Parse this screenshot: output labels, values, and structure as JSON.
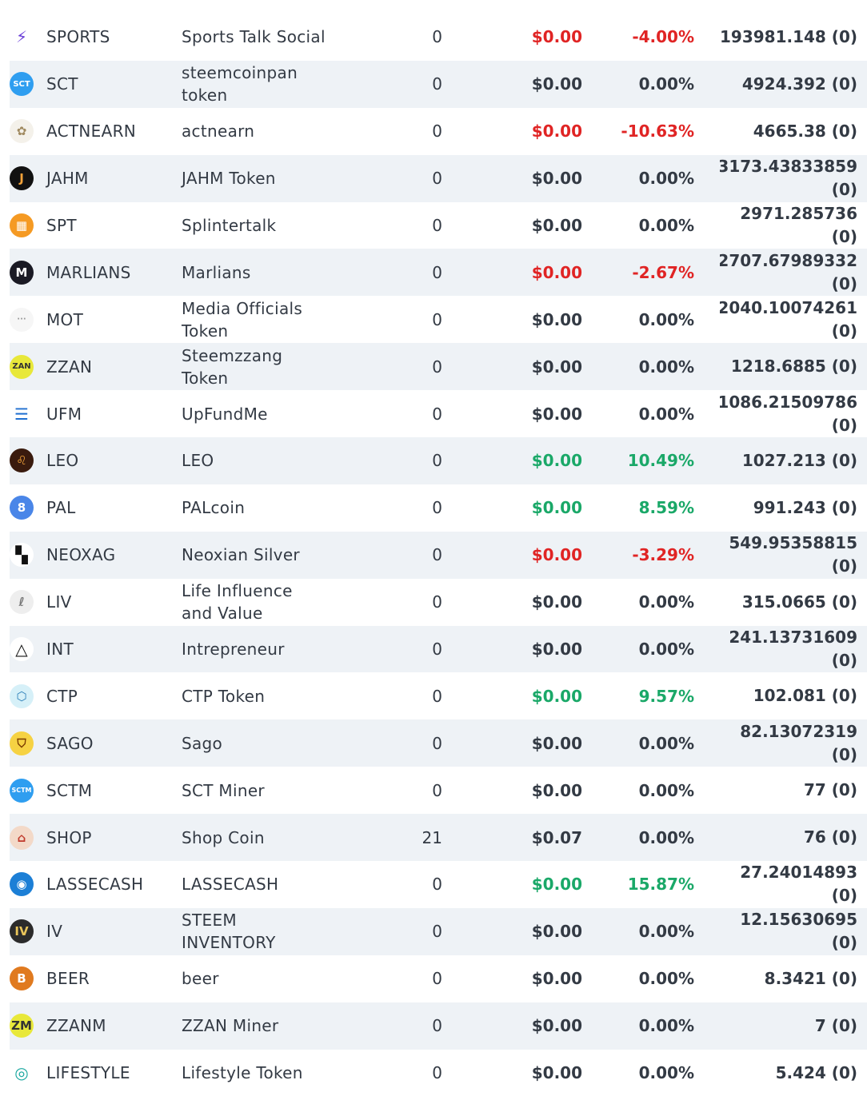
{
  "tokens": [
    {
      "icon": "sports-icon",
      "bg": "#ffffff",
      "fg": "#6a3fd8",
      "glyph": "⚡",
      "symbol": "SPORTS",
      "name": "Sports Talk Social",
      "balance": "0",
      "price": "$0.00",
      "change": "-4.00%",
      "trend": "neg",
      "supply": "193981.148 (0)"
    },
    {
      "icon": "sct-icon",
      "bg": "#2f9ef0",
      "fg": "#ffffff",
      "glyph": "SCT",
      "symbol": "SCT",
      "name": "steemcoinpan token",
      "balance": "0",
      "price": "$0.00",
      "change": "0.00%",
      "trend": "neu",
      "supply": "4924.392 (0)"
    },
    {
      "icon": "actnearn-icon",
      "bg": "#f4f1ea",
      "fg": "#a08a60",
      "glyph": "✿",
      "symbol": "ACTNEARN",
      "name": "actnearn",
      "balance": "0",
      "price": "$0.00",
      "change": "-10.63%",
      "trend": "neg",
      "supply": "4665.38 (0)"
    },
    {
      "icon": "jahm-icon",
      "bg": "#111111",
      "fg": "#f2a23a",
      "glyph": "J",
      "symbol": "JAHM",
      "name": "JAHM Token",
      "balance": "0",
      "price": "$0.00",
      "change": "0.00%",
      "trend": "neu",
      "supply": "3173.43833859\n(0)"
    },
    {
      "icon": "spt-icon",
      "bg": "#f59a23",
      "fg": "#ffffff",
      "glyph": "▦",
      "symbol": "SPT",
      "name": "Splintertalk",
      "balance": "0",
      "price": "$0.00",
      "change": "0.00%",
      "trend": "neu",
      "supply": "2971.285736\n(0)"
    },
    {
      "icon": "marlians-icon",
      "bg": "#1a1a24",
      "fg": "#ffffff",
      "glyph": "M",
      "symbol": "MARLIANS",
      "name": "Marlians",
      "balance": "0",
      "price": "$0.00",
      "change": "-2.67%",
      "trend": "neg",
      "supply": "2707.67989332\n(0)"
    },
    {
      "icon": "mot-icon",
      "bg": "#f6f6f6",
      "fg": "#999999",
      "glyph": "···",
      "symbol": "MOT",
      "name": "Media Officials Token",
      "balance": "0",
      "price": "$0.00",
      "change": "0.00%",
      "trend": "neu",
      "supply": "2040.10074261\n(0)"
    },
    {
      "icon": "zzan-icon",
      "bg": "#e8e83a",
      "fg": "#333333",
      "glyph": "ZAN",
      "symbol": "ZZAN",
      "name": "Steemzzang Token",
      "balance": "0",
      "price": "$0.00",
      "change": "0.00%",
      "trend": "neu",
      "supply": "1218.6885 (0)"
    },
    {
      "icon": "ufm-icon",
      "bg": "#ffffff",
      "fg": "#1f6fd0",
      "glyph": "☰",
      "symbol": "UFM",
      "name": "UpFundMe",
      "balance": "0",
      "price": "$0.00",
      "change": "0.00%",
      "trend": "neu",
      "supply": "1086.21509786\n(0)"
    },
    {
      "icon": "leo-icon",
      "bg": "#3a1b0e",
      "fg": "#f2a23a",
      "glyph": "♌",
      "symbol": "LEO",
      "name": "LEO",
      "balance": "0",
      "price": "$0.00",
      "change": "10.49%",
      "trend": "pos",
      "supply": "1027.213 (0)"
    },
    {
      "icon": "pal-icon",
      "bg": "#4a86e8",
      "fg": "#ffffff",
      "glyph": "8",
      "symbol": "PAL",
      "name": "PALcoin",
      "balance": "0",
      "price": "$0.00",
      "change": "8.59%",
      "trend": "pos",
      "supply": "991.243 (0)"
    },
    {
      "icon": "neoxag-icon",
      "bg": "#ffffff",
      "fg": "#111111",
      "glyph": "▚",
      "symbol": "NEOXAG",
      "name": "Neoxian Silver",
      "balance": "0",
      "price": "$0.00",
      "change": "-3.29%",
      "trend": "neg",
      "supply": "549.95358815\n(0)"
    },
    {
      "icon": "liv-icon",
      "bg": "#eeeeee",
      "fg": "#777777",
      "glyph": "ℓ",
      "symbol": "LIV",
      "name": "Life Influence and Value",
      "balance": "0",
      "price": "$0.00",
      "change": "0.00%",
      "trend": "neu",
      "supply": "315.0665 (0)"
    },
    {
      "icon": "int-icon",
      "bg": "#ffffff",
      "fg": "#111111",
      "glyph": "△",
      "symbol": "INT",
      "name": "Intrepreneur",
      "balance": "0",
      "price": "$0.00",
      "change": "0.00%",
      "trend": "neu",
      "supply": "241.13731609\n(0)"
    },
    {
      "icon": "ctp-icon",
      "bg": "#d6f0f8",
      "fg": "#2c7fb8",
      "glyph": "⬡",
      "symbol": "CTP",
      "name": "CTP Token",
      "balance": "0",
      "price": "$0.00",
      "change": "9.57%",
      "trend": "pos",
      "supply": "102.081 (0)"
    },
    {
      "icon": "sago-icon",
      "bg": "#f6d243",
      "fg": "#7a3b00",
      "glyph": "⛉",
      "symbol": "SAGO",
      "name": "Sago",
      "balance": "0",
      "price": "$0.00",
      "change": "0.00%",
      "trend": "neu",
      "supply": "82.13072319\n(0)"
    },
    {
      "icon": "sctm-icon",
      "bg": "#2f9ef0",
      "fg": "#ffffff",
      "glyph": "SCTM",
      "symbol": "SCTM",
      "name": "SCT Miner",
      "balance": "0",
      "price": "$0.00",
      "change": "0.00%",
      "trend": "neu",
      "supply": "77 (0)"
    },
    {
      "icon": "shop-icon",
      "bg": "#f3d9c8",
      "fg": "#c0392b",
      "glyph": "⌂",
      "symbol": "SHOP",
      "name": "Shop Coin",
      "balance": "21",
      "price": "$0.07",
      "change": "0.00%",
      "trend": "neu",
      "supply": "76 (0)"
    },
    {
      "icon": "lassecash-icon",
      "bg": "#1c7fd6",
      "fg": "#ffffff",
      "glyph": "◉",
      "symbol": "LASSECASH",
      "name": "LASSECASH",
      "balance": "0",
      "price": "$0.00",
      "change": "15.87%",
      "trend": "pos",
      "supply": "27.24014893\n(0)"
    },
    {
      "icon": "iv-icon",
      "bg": "#2b2b2b",
      "fg": "#e8c45a",
      "glyph": "IV",
      "symbol": "IV",
      "name": "STEEM INVENTORY",
      "balance": "0",
      "price": "$0.00",
      "change": "0.00%",
      "trend": "neu",
      "supply": "12.15630695\n(0)"
    },
    {
      "icon": "beer-icon",
      "bg": "#e07a1f",
      "fg": "#ffffff",
      "glyph": "B",
      "symbol": "BEER",
      "name": "beer",
      "balance": "0",
      "price": "$0.00",
      "change": "0.00%",
      "trend": "neu",
      "supply": "8.3421 (0)"
    },
    {
      "icon": "zzanm-icon",
      "bg": "#e8e83a",
      "fg": "#333333",
      "glyph": "ZM",
      "symbol": "ZZANM",
      "name": "ZZAN Miner",
      "balance": "0",
      "price": "$0.00",
      "change": "0.00%",
      "trend": "neu",
      "supply": "7 (0)"
    },
    {
      "icon": "lifestyle-icon",
      "bg": "#ffffff",
      "fg": "#1aa8a0",
      "glyph": "◎",
      "symbol": "LIFESTYLE",
      "name": "Lifestyle Token",
      "balance": "0",
      "price": "$0.00",
      "change": "0.00%",
      "trend": "neu",
      "supply": "5.424 (0)"
    }
  ]
}
